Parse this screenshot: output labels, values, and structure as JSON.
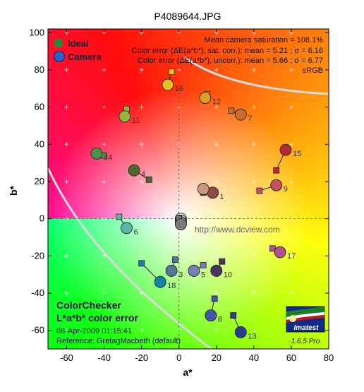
{
  "chart_data": {
    "type": "scatter",
    "title": "P4089644.JPG",
    "xlabel": "a*",
    "ylabel": "b*",
    "xlim": [
      -70,
      80
    ],
    "ylim": [
      -70,
      102
    ],
    "xticks": [
      -60,
      -40,
      -20,
      0,
      20,
      40,
      60,
      80
    ],
    "yticks": [
      -60,
      -40,
      -20,
      0,
      20,
      40,
      60,
      80,
      100
    ],
    "legend": {
      "placement": "top-left",
      "entries": [
        {
          "name": "Ideal",
          "marker": "square",
          "color": "#1f8a3c"
        },
        {
          "name": "Camera",
          "marker": "circle",
          "color": "#2a5fd0"
        }
      ]
    },
    "stats": {
      "line1": "Mean camera saturation = 108.1%",
      "line2": "Color error (ΔE(a*b*), sat. corr.):   mean = 5.21 ;  σ = 6.16",
      "line3": "Color error (ΔE(a*b*), uncorr.):   mean = 5.66 ;  σ = 6.77",
      "line4": "sRGB"
    },
    "watermark": "http://www.dcview.com",
    "footer": {
      "title1": "ColorChecker",
      "title2": "L*a*b* color error",
      "date": "08-Apr-2009 01:15:41",
      "reference": "Reference: GretagMacbeth (default)"
    },
    "logo": {
      "text": "Imatest",
      "version": "1.6.5  Pro"
    },
    "patches": [
      {
        "id": "1",
        "ideal": [
          13,
          14
        ],
        "camera": [
          18,
          14
        ],
        "color": "#8a4d3f"
      },
      {
        "id": "",
        "ideal": [
          13,
          15
        ],
        "camera": [
          13,
          16
        ],
        "color": "#c9967e"
      },
      {
        "id": "3",
        "ideal": [
          -2,
          -22
        ],
        "camera": [
          -4,
          -28
        ],
        "color": "#56769a"
      },
      {
        "id": "4",
        "ideal": [
          -16,
          21
        ],
        "camera": [
          -24,
          26
        ],
        "color": "#4a6830"
      },
      {
        "id": "5",
        "ideal": [
          13,
          -25
        ],
        "camera": [
          8,
          -28
        ],
        "color": "#7a7fb2"
      },
      {
        "id": "6",
        "ideal": [
          -32,
          1
        ],
        "camera": [
          -28,
          -5
        ],
        "color": "#5bb7a3"
      },
      {
        "id": "7",
        "ideal": [
          28,
          58
        ],
        "camera": [
          33,
          56
        ],
        "color": "#cf6e2b"
      },
      {
        "id": "8",
        "ideal": [
          19,
          -43
        ],
        "camera": [
          17,
          -52
        ],
        "color": "#3f58ad"
      },
      {
        "id": "9",
        "ideal": [
          43,
          15
        ],
        "camera": [
          52,
          18
        ],
        "color": "#c35363"
      },
      {
        "id": "10",
        "ideal": [
          23,
          -23
        ],
        "camera": [
          20,
          -28
        ],
        "color": "#4c3263"
      },
      {
        "id": "11",
        "ideal": [
          -28,
          59
        ],
        "camera": [
          -29,
          55
        ],
        "color": "#98b43a"
      },
      {
        "id": "12",
        "ideal": [
          15,
          67
        ],
        "camera": [
          14,
          65
        ],
        "color": "#dd9d27"
      },
      {
        "id": "13",
        "ideal": [
          29,
          -52
        ],
        "camera": [
          33,
          -61
        ],
        "color": "#283c94"
      },
      {
        "id": "14",
        "ideal": [
          -40,
          34
        ],
        "camera": [
          -44,
          35
        ],
        "color": "#4a9448"
      },
      {
        "id": "15",
        "ideal": [
          52,
          26
        ],
        "camera": [
          57,
          37
        ],
        "color": "#b32c33"
      },
      {
        "id": "16",
        "ideal": [
          -4,
          79
        ],
        "camera": [
          -6,
          72
        ],
        "color": "#e7c21f"
      },
      {
        "id": "17",
        "ideal": [
          50,
          -16
        ],
        "camera": [
          54,
          -18
        ],
        "color": "#b54f95"
      },
      {
        "id": "18",
        "ideal": [
          -20,
          -24
        ],
        "camera": [
          -10,
          -34
        ],
        "color": "#0d85a3"
      },
      {
        "id": "",
        "ideal": [
          0,
          0
        ],
        "camera": [
          1,
          0
        ],
        "color": "#f2f2f2"
      },
      {
        "id": "",
        "ideal": [
          0,
          0
        ],
        "camera": [
          1,
          -1
        ],
        "color": "#c8c8c8"
      },
      {
        "id": "",
        "ideal": [
          0,
          0
        ],
        "camera": [
          1,
          -2
        ],
        "color": "#a0a0a0"
      },
      {
        "id": "",
        "ideal": [
          0,
          0
        ],
        "camera": [
          1,
          -3
        ],
        "color": "#7a7a7a"
      }
    ]
  }
}
